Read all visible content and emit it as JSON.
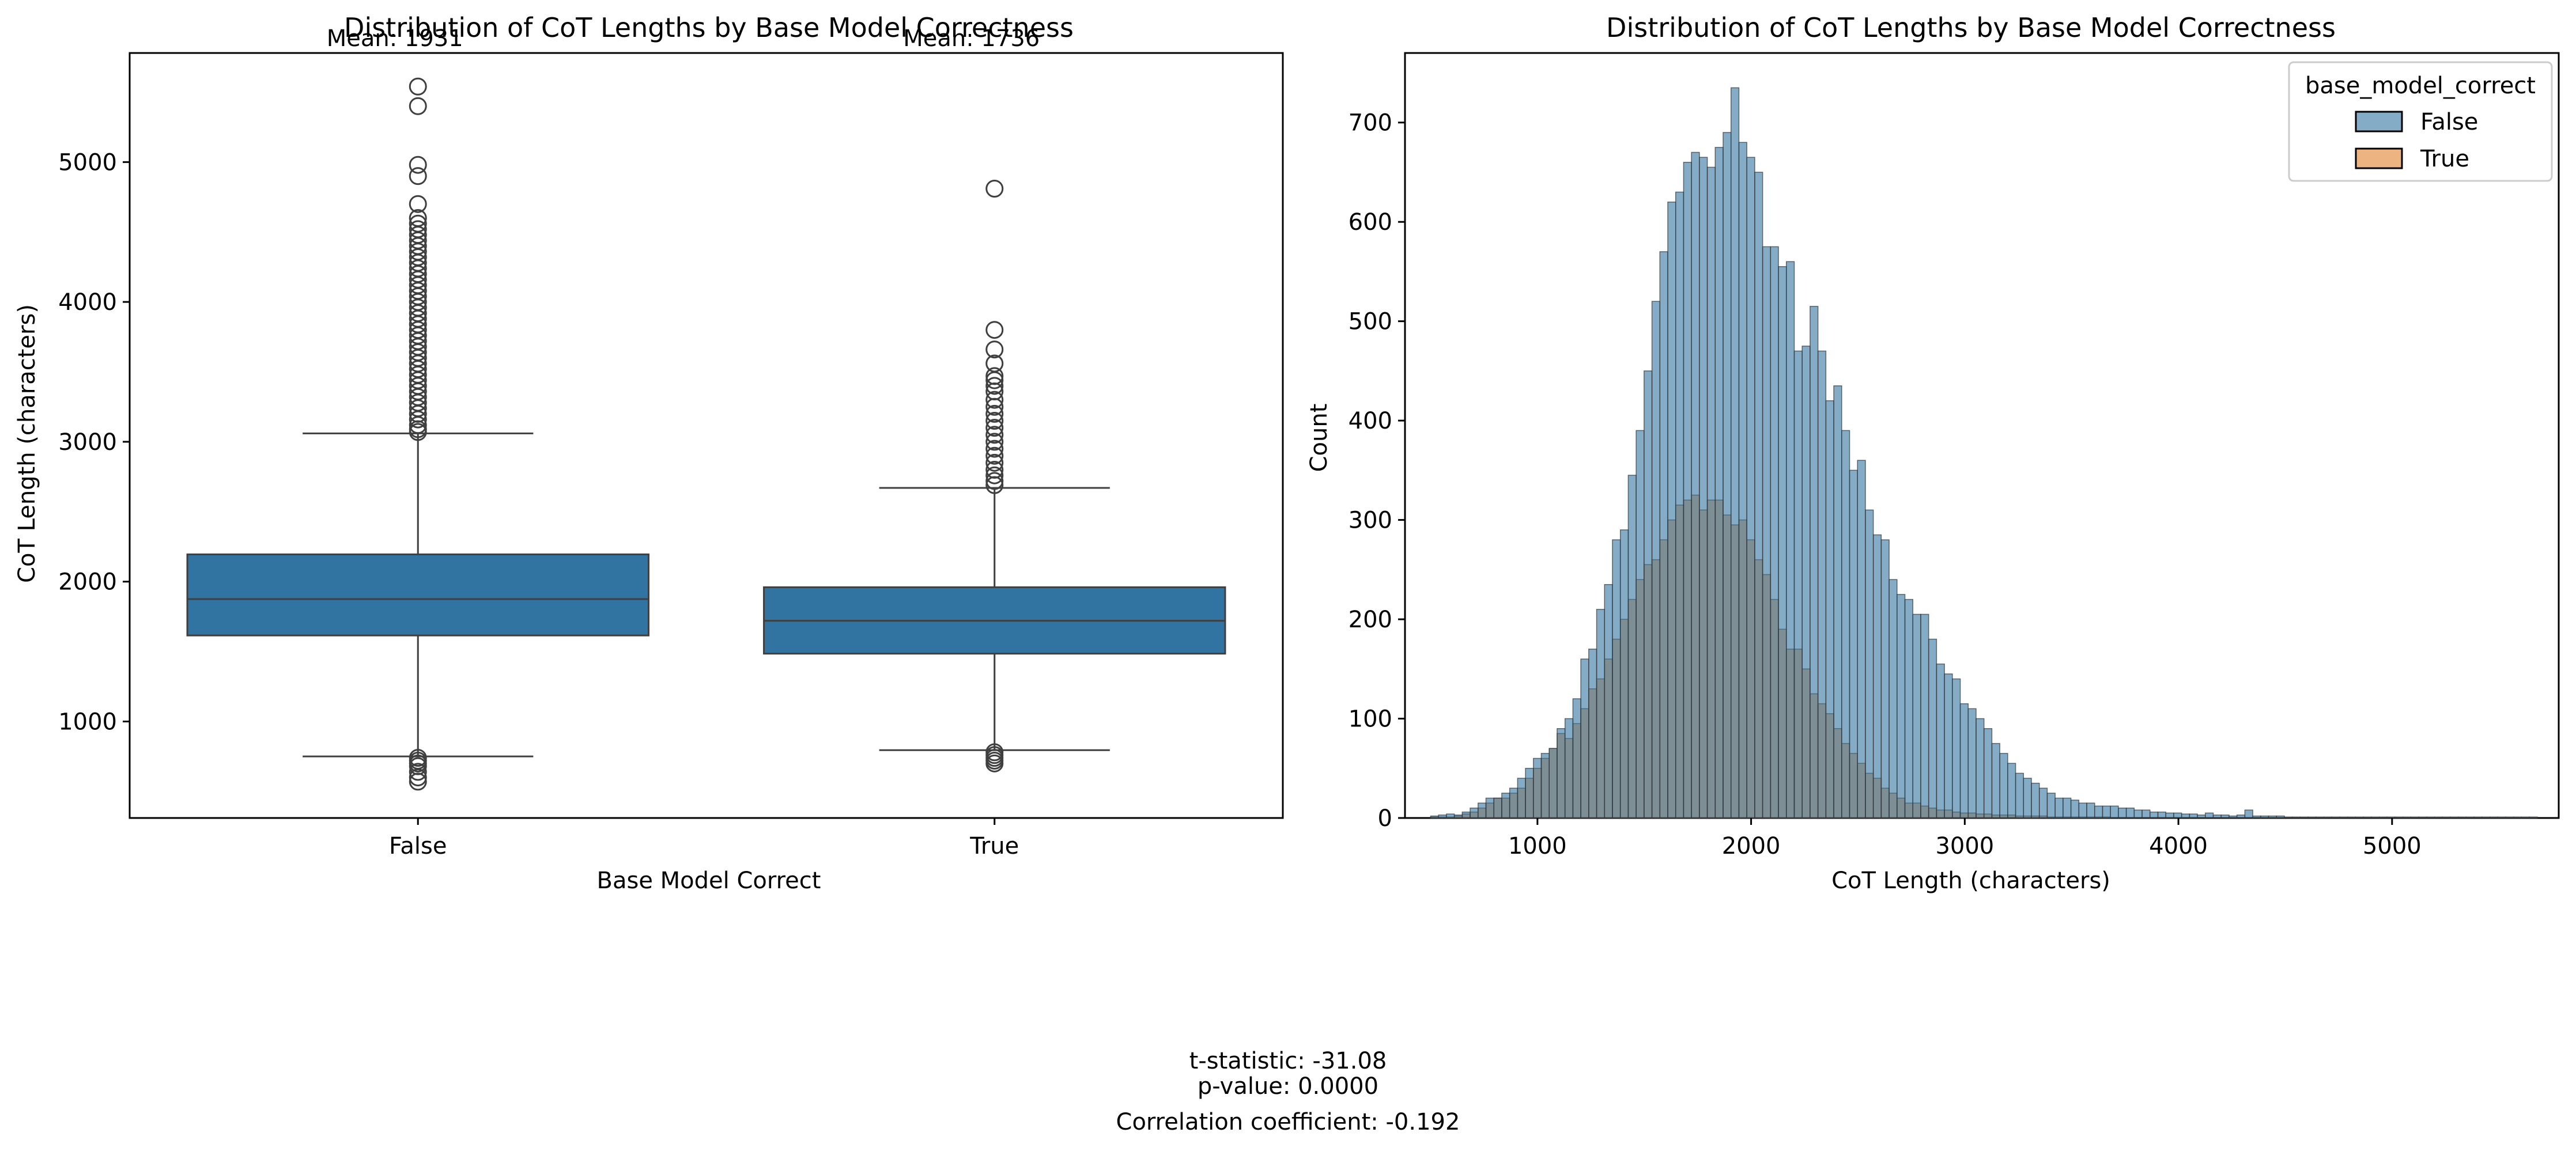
{
  "chart_data": [
    {
      "type": "box",
      "title": "Distribution of CoT Lengths by Base Model Correctness",
      "xlabel": "Base Model Correct",
      "ylabel": "CoT Length (characters)",
      "categories": [
        "False",
        "True"
      ],
      "ylim": [
        310,
        5780
      ],
      "yticks": [
        1000,
        2000,
        3000,
        4000,
        5000
      ],
      "color": "#3274a1",
      "boxes": [
        {
          "category": "False",
          "mean_label": "Mean: 1931",
          "q1": 1615,
          "median": 1875,
          "q3": 2195,
          "whisker_low": 750,
          "whisker_high": 3060,
          "outliers": [
            5540,
            5400,
            4980,
            4900,
            4700,
            4600,
            4560,
            4520,
            4480,
            4440,
            4400,
            4360,
            4320,
            4280,
            4240,
            4200,
            4160,
            4120,
            4080,
            4040,
            4000,
            3960,
            3920,
            3880,
            3840,
            3800,
            3760,
            3720,
            3680,
            3640,
            3600,
            3560,
            3520,
            3480,
            3440,
            3400,
            3360,
            3320,
            3280,
            3240,
            3200,
            3160,
            3120,
            3090,
            3070,
            740,
            720,
            700,
            680,
            640,
            600,
            570
          ]
        },
        {
          "category": "True",
          "mean_label": "Mean: 1736",
          "q1": 1485,
          "median": 1720,
          "q3": 1960,
          "whisker_low": 795,
          "whisker_high": 2670,
          "outliers": [
            4810,
            3800,
            3660,
            3560,
            3470,
            3440,
            3400,
            3360,
            3300,
            3250,
            3200,
            3150,
            3100,
            3050,
            3000,
            2950,
            2900,
            2850,
            2800,
            2760,
            2720,
            2690,
            780,
            760,
            740,
            720,
            700
          ]
        }
      ]
    },
    {
      "type": "histogram",
      "title": "Distribution of CoT Lengths by Base Model Correctness",
      "xlabel": "CoT Length (characters)",
      "ylabel": "Count",
      "xlim": [
        380,
        5780
      ],
      "ylim": [
        0,
        770
      ],
      "xticks": [
        1000,
        2000,
        3000,
        4000,
        5000
      ],
      "yticks": [
        0,
        100,
        200,
        300,
        400,
        500,
        600,
        700
      ],
      "bin_start": 500,
      "bin_width": 37,
      "legend": {
        "title": "base_model_correct",
        "placement": "top-right"
      },
      "series": [
        {
          "name": "False",
          "color": "#3274a1",
          "counts": [
            2,
            3,
            4,
            3,
            6,
            10,
            15,
            20,
            20,
            25,
            30,
            40,
            50,
            60,
            65,
            70,
            90,
            100,
            120,
            160,
            170,
            210,
            235,
            280,
            290,
            345,
            390,
            450,
            520,
            570,
            620,
            630,
            660,
            670,
            665,
            655,
            675,
            690,
            735,
            680,
            665,
            650,
            575,
            575,
            555,
            560,
            470,
            475,
            515,
            470,
            420,
            435,
            390,
            350,
            360,
            310,
            285,
            280,
            240,
            225,
            220,
            205,
            205,
            180,
            155,
            145,
            140,
            115,
            110,
            100,
            90,
            75,
            65,
            55,
            45,
            40,
            35,
            30,
            25,
            20,
            20,
            18,
            15,
            15,
            12,
            12,
            12,
            10,
            10,
            8,
            8,
            6,
            6,
            5,
            5,
            4,
            4,
            3,
            5,
            3,
            3,
            2,
            3,
            8,
            2,
            2,
            2,
            2,
            1,
            1,
            1,
            1,
            1,
            1,
            1,
            1,
            1,
            1,
            1,
            1,
            1,
            1,
            1,
            1,
            1,
            1,
            1,
            1,
            1,
            1,
            1,
            1,
            1,
            1,
            1,
            1,
            1,
            1,
            1,
            1
          ]
        },
        {
          "name": "True",
          "color": "#e1812c",
          "counts": [
            1,
            1,
            1,
            2,
            4,
            6,
            10,
            15,
            20,
            20,
            25,
            30,
            40,
            50,
            60,
            70,
            85,
            80,
            95,
            110,
            130,
            140,
            160,
            180,
            200,
            220,
            240,
            255,
            260,
            280,
            300,
            315,
            320,
            325,
            310,
            320,
            320,
            305,
            295,
            300,
            280,
            260,
            245,
            220,
            190,
            170,
            170,
            150,
            125,
            115,
            105,
            90,
            75,
            65,
            55,
            45,
            40,
            30,
            25,
            20,
            15,
            15,
            12,
            10,
            8,
            8,
            6,
            5,
            5,
            4,
            4,
            3,
            3,
            3,
            2,
            2,
            2,
            2,
            1,
            1,
            1,
            1,
            1,
            1,
            1,
            1,
            0,
            0,
            0,
            0,
            0,
            0,
            0,
            0,
            0,
            0,
            0,
            0,
            0,
            0,
            0,
            0,
            0,
            0,
            0,
            0,
            0,
            0,
            0,
            0,
            0,
            0,
            0,
            0,
            0,
            0,
            0,
            0,
            0,
            0,
            0,
            0,
            0,
            0,
            0,
            0,
            0,
            0,
            0,
            0,
            0,
            0,
            0,
            0,
            0,
            0,
            0,
            0,
            0,
            0
          ]
        }
      ]
    }
  ],
  "stats": {
    "t_statistic": "t-statistic: -31.08",
    "p_value": "p-value: 0.0000",
    "correlation": "Correlation coefficient: -0.192"
  }
}
